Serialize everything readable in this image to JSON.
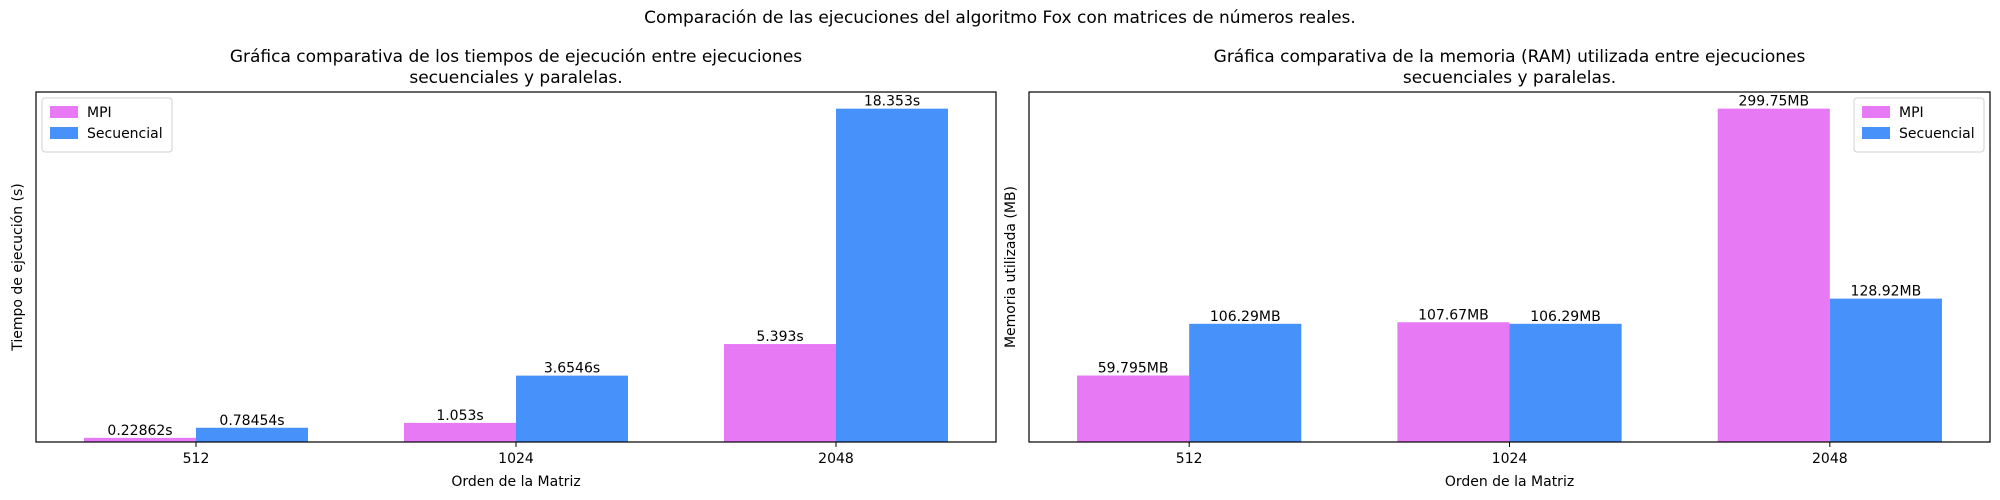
{
  "suptitle": "Comparación de las ejecuciones del algoritmo Fox con matrices de números reales.",
  "colors": {
    "mpi": "#e879f5",
    "secuencial": "#4791fb"
  },
  "chart_data": [
    {
      "type": "bar",
      "title_lines": [
        "Gráfica comparativa de los tiempos de ejecución entre ejecuciones",
        "secuenciales y paralelas."
      ],
      "xlabel": "Orden de la Matriz",
      "ylabel": "Tiempo de ejecución (s)",
      "categories": [
        "512",
        "1024",
        "2048"
      ],
      "ylim": [
        0,
        19.27
      ],
      "yticks_visible": false,
      "legend": "top-left",
      "series": [
        {
          "name": "MPI",
          "color": "#e879f5",
          "values": [
            0.22862,
            1.053,
            5.393
          ],
          "labels": [
            "0.22862s",
            "1.053s",
            "5.393s"
          ]
        },
        {
          "name": "Secuencial",
          "color": "#4791fb",
          "values": [
            0.78454,
            3.6546,
            18.353
          ],
          "labels": [
            "0.78454s",
            "3.6546s",
            "18.353s"
          ]
        }
      ]
    },
    {
      "type": "bar",
      "title_lines": [
        "Gráfica comparativa de la memoria (RAM) utilizada entre ejecuciones",
        "secuenciales y paralelas."
      ],
      "xlabel": "Orden de la Matriz",
      "ylabel": "Memoria utilizada (MB)",
      "categories": [
        "512",
        "1024",
        "2048"
      ],
      "ylim": [
        0,
        314.7
      ],
      "yticks_visible": false,
      "legend": "top-right",
      "series": [
        {
          "name": "MPI",
          "color": "#e879f5",
          "values": [
            59.795,
            107.67,
            299.75
          ],
          "labels": [
            "59.795MB",
            "107.67MB",
            "299.75MB"
          ]
        },
        {
          "name": "Secuencial",
          "color": "#4791fb",
          "values": [
            106.29,
            106.29,
            128.92
          ],
          "labels": [
            "106.29MB",
            "106.29MB",
            "128.92MB"
          ]
        }
      ]
    }
  ]
}
